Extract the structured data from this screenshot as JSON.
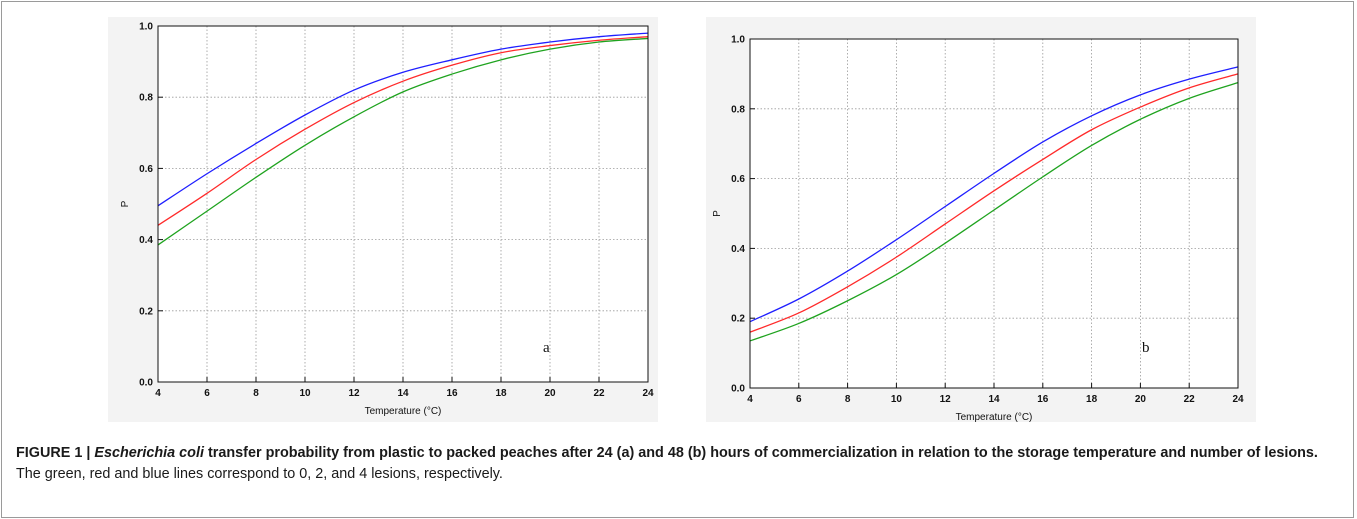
{
  "caption": {
    "label": "FIGURE 1 | ",
    "species": "Escherichia coli",
    "title_rest": " transfer probability from plastic to packed peaches after 24 (a) and 48 (b) hours of commercialization in relation to the storage temperature and number of lesions.",
    "description": " The green, red and blue lines correspond to 0, 2, and 4 lesions, respectively."
  },
  "chart_data": [
    {
      "type": "line",
      "panel_label": "a",
      "xlabel": "Temperature (°C)",
      "ylabel": "P",
      "xlim": [
        4,
        24
      ],
      "ylim": [
        0,
        1
      ],
      "xticks": [
        "4",
        "6",
        "8",
        "10",
        "12",
        "14",
        "16",
        "18",
        "20",
        "22",
        "24"
      ],
      "yticks": [
        "0.0",
        "0.2",
        "0.4",
        "0.6",
        "0.8",
        "1.0"
      ],
      "grid": true,
      "x": [
        4,
        6,
        8,
        10,
        12,
        14,
        16,
        18,
        20,
        22,
        24
      ],
      "series": [
        {
          "color": "#1fa31f",
          "values": [
            0.385,
            0.48,
            0.575,
            0.665,
            0.745,
            0.815,
            0.865,
            0.905,
            0.935,
            0.955,
            0.965
          ]
        },
        {
          "color": "#ff2a2a",
          "values": [
            0.44,
            0.53,
            0.625,
            0.71,
            0.785,
            0.845,
            0.89,
            0.925,
            0.945,
            0.96,
            0.97
          ]
        },
        {
          "color": "#1f1fff",
          "values": [
            0.495,
            0.585,
            0.67,
            0.75,
            0.82,
            0.87,
            0.905,
            0.935,
            0.955,
            0.97,
            0.98
          ]
        }
      ]
    },
    {
      "type": "line",
      "panel_label": "b",
      "xlabel": "Temperature (°C)",
      "ylabel": "P",
      "xlim": [
        4,
        24
      ],
      "ylim": [
        0,
        1
      ],
      "xticks": [
        "4",
        "6",
        "8",
        "10",
        "12",
        "14",
        "16",
        "18",
        "20",
        "22",
        "24"
      ],
      "yticks": [
        "0.0",
        "0.2",
        "0.4",
        "0.6",
        "0.8",
        "1.0"
      ],
      "grid": true,
      "x": [
        4,
        6,
        8,
        10,
        12,
        14,
        16,
        18,
        20,
        22,
        24
      ],
      "series": [
        {
          "color": "#1fa31f",
          "values": [
            0.135,
            0.185,
            0.25,
            0.325,
            0.415,
            0.51,
            0.605,
            0.695,
            0.77,
            0.83,
            0.875
          ]
        },
        {
          "color": "#ff2a2a",
          "values": [
            0.16,
            0.215,
            0.29,
            0.375,
            0.47,
            0.565,
            0.655,
            0.74,
            0.805,
            0.86,
            0.9
          ]
        },
        {
          "color": "#1f1fff",
          "values": [
            0.19,
            0.255,
            0.335,
            0.425,
            0.52,
            0.615,
            0.705,
            0.78,
            0.84,
            0.885,
            0.92
          ]
        }
      ]
    }
  ]
}
